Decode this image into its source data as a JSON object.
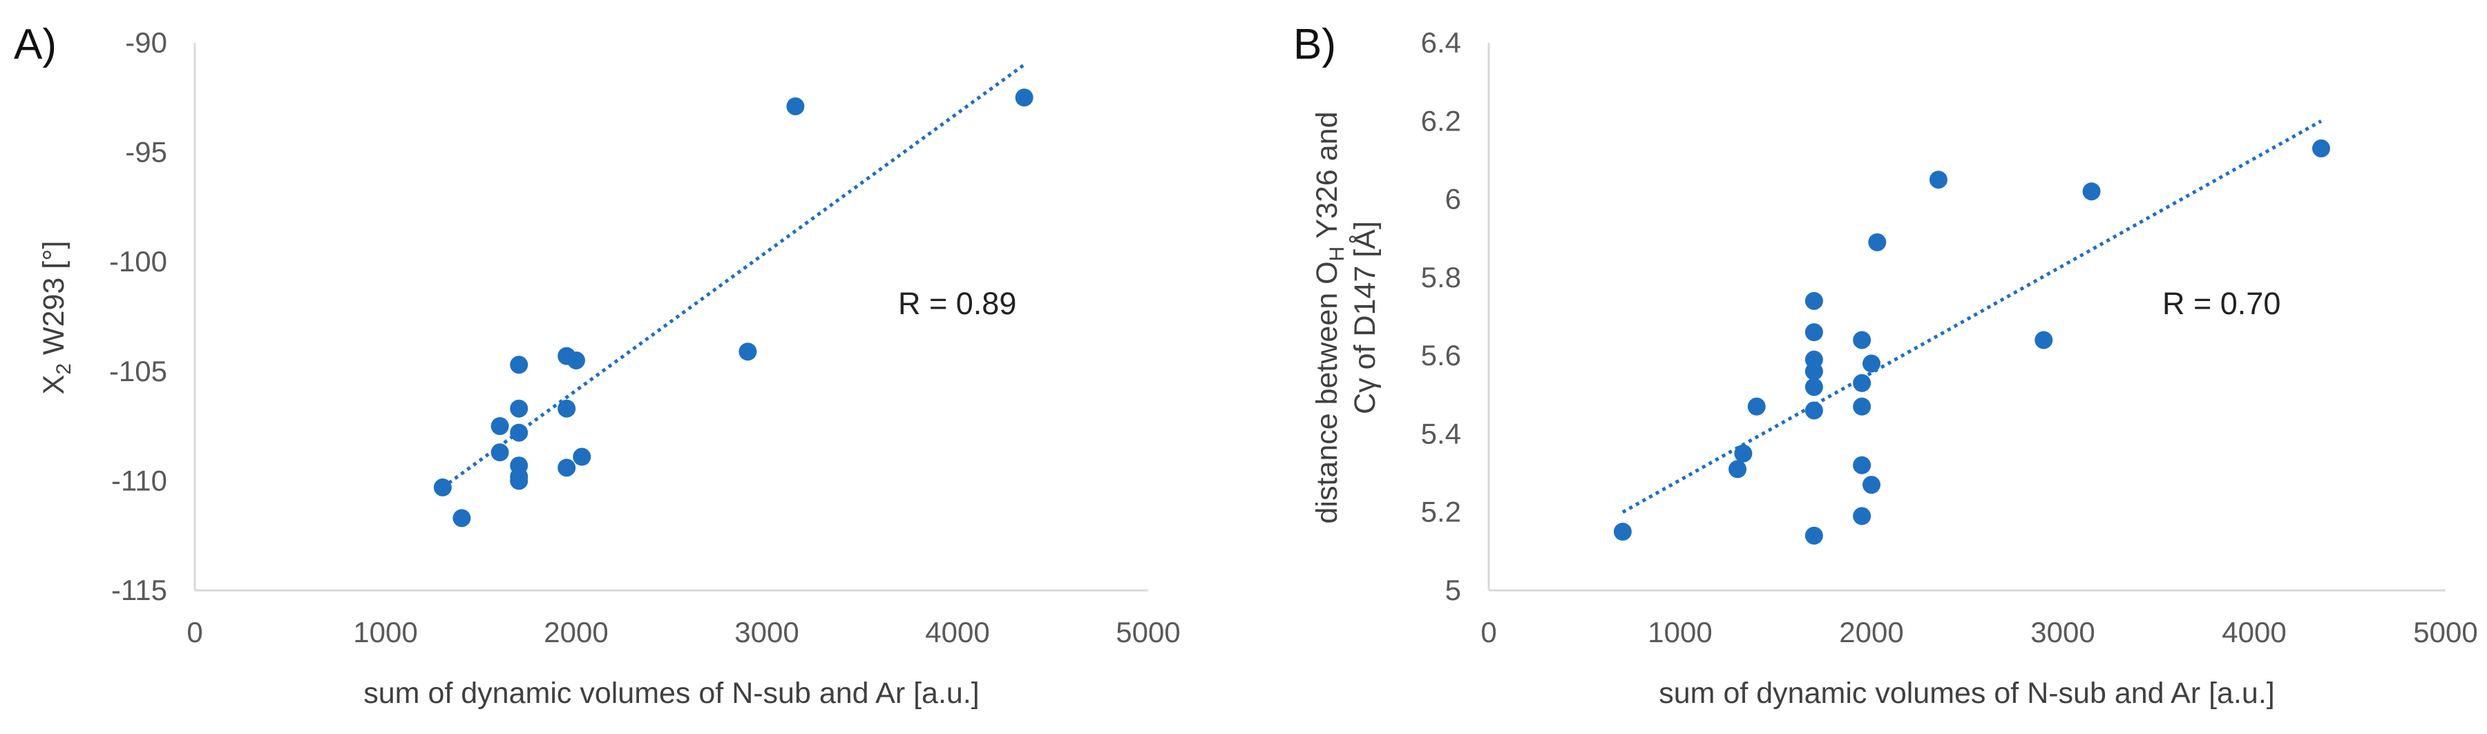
{
  "colors": {
    "marker": "#1F6FC1",
    "axis": "#d9d9d9",
    "trend": "#1F6FC1"
  },
  "chart_data": [
    {
      "type": "scatter",
      "panel_label": "A)",
      "title": "",
      "xlabel": "sum of dynamic volumes of N-sub and Ar [a.u.]",
      "ylabel": {
        "prefix": "X",
        "sub": "2",
        "suffix": " W293 [°]"
      },
      "xlim": [
        0,
        5000
      ],
      "ylim": [
        -115,
        -90
      ],
      "xticks": [
        0,
        1000,
        2000,
        3000,
        4000,
        5000
      ],
      "yticks": [
        -90,
        -95,
        -100,
        -105,
        -110,
        -115
      ],
      "annotation": "R = 0.89",
      "trendline": {
        "x": [
          1300,
          4350
        ],
        "y": [
          -110.3,
          -91.0
        ]
      },
      "points": [
        [
          1300,
          -110.3
        ],
        [
          1400,
          -111.7
        ],
        [
          1600,
          -107.5
        ],
        [
          1600,
          -108.7
        ],
        [
          1700,
          -104.7
        ],
        [
          1700,
          -106.7
        ],
        [
          1700,
          -107.8
        ],
        [
          1700,
          -109.3
        ],
        [
          1700,
          -109.8
        ],
        [
          1700,
          -110.0
        ],
        [
          1950,
          -104.3
        ],
        [
          1950,
          -106.7
        ],
        [
          1950,
          -109.4
        ],
        [
          2000,
          -104.5
        ],
        [
          2030,
          -108.9
        ],
        [
          2900,
          -104.1
        ],
        [
          3150,
          -92.9
        ],
        [
          4350,
          -92.5
        ]
      ]
    },
    {
      "type": "scatter",
      "panel_label": "B)",
      "title": "",
      "xlabel": "sum of dynamic volumes of N-sub and Ar [a.u.]",
      "ylabel": {
        "line1_prefix": "distance between O",
        "line1_sub": "H",
        "line1_suffix": " Y326 and",
        "line2": "Cγ of D147 [Å]"
      },
      "xlim": [
        0,
        5000
      ],
      "ylim": [
        5,
        6.4
      ],
      "xticks": [
        0,
        1000,
        2000,
        3000,
        4000,
        5000
      ],
      "yticks": [
        5,
        5.2,
        5.4,
        5.6,
        5.8,
        6,
        6.2,
        6.4
      ],
      "ytick_labels": [
        "5",
        "5.2",
        "5.4",
        "5.6",
        "5.8",
        "6",
        "6.2",
        "6.4"
      ],
      "annotation": "R = 0.70",
      "trendline": {
        "x": [
          700,
          4350
        ],
        "y": [
          5.2,
          6.2
        ]
      },
      "points": [
        [
          700,
          5.15
        ],
        [
          1300,
          5.31
        ],
        [
          1330,
          5.35
        ],
        [
          1400,
          5.47
        ],
        [
          1700,
          5.74
        ],
        [
          1700,
          5.66
        ],
        [
          1700,
          5.59
        ],
        [
          1700,
          5.56
        ],
        [
          1700,
          5.52
        ],
        [
          1700,
          5.46
        ],
        [
          1700,
          5.14
        ],
        [
          1950,
          5.64
        ],
        [
          1950,
          5.53
        ],
        [
          1950,
          5.47
        ],
        [
          1950,
          5.32
        ],
        [
          1950,
          5.19
        ],
        [
          2000,
          5.58
        ],
        [
          2000,
          5.27
        ],
        [
          2030,
          5.89
        ],
        [
          2350,
          6.05
        ],
        [
          2900,
          5.64
        ],
        [
          3150,
          6.02
        ],
        [
          4350,
          6.13
        ]
      ]
    }
  ]
}
